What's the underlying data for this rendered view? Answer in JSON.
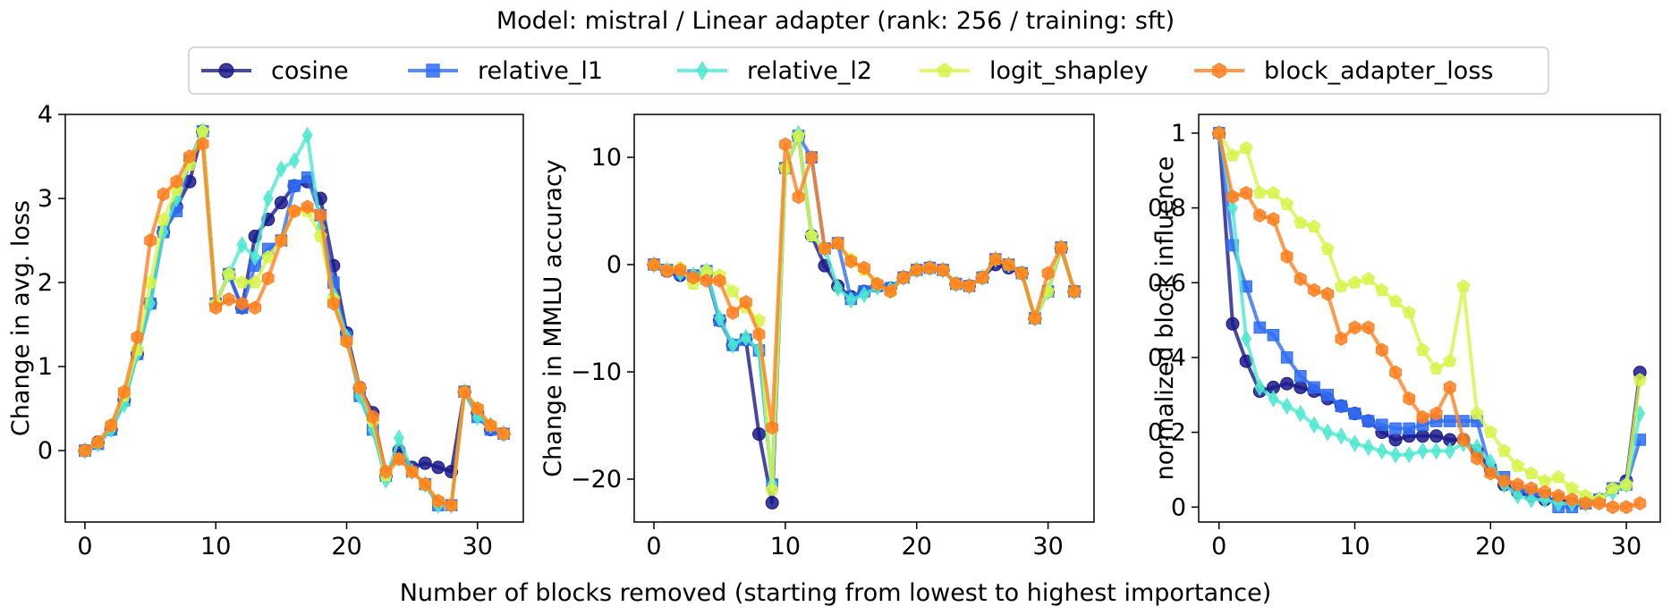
{
  "figure": {
    "title": "Model: mistral / Linear adapter (rank: 256 / training: sft)",
    "xlabel": "Number of blocks removed (starting from lowest to highest importance)"
  },
  "legend": {
    "placement": "top-center",
    "entries": [
      {
        "name": "cosine",
        "color": "#1a1a8c",
        "marker": "circle"
      },
      {
        "name": "relative_l1",
        "color": "#2f6df5",
        "marker": "square"
      },
      {
        "name": "relative_l2",
        "color": "#4de8d0",
        "marker": "diamond"
      },
      {
        "name": "logit_shapley",
        "color": "#d6f54a",
        "marker": "pentagon"
      },
      {
        "name": "block_adapter_loss",
        "color": "#ff7f1e",
        "marker": "hexagon"
      }
    ]
  },
  "chart_data": [
    {
      "type": "line",
      "ylabel": "Change in avg. loss",
      "xlim": [
        -1.5,
        33.5
      ],
      "ylim": [
        -0.85,
        4.0
      ],
      "xticks": [
        0,
        10,
        20,
        30
      ],
      "yticks": [
        0,
        1,
        2,
        3,
        4
      ],
      "grid": false,
      "x": [
        0,
        1,
        2,
        3,
        4,
        5,
        6,
        7,
        8,
        9,
        10,
        11,
        12,
        13,
        14,
        15,
        16,
        17,
        18,
        19,
        20,
        21,
        22,
        23,
        24,
        25,
        26,
        27,
        28,
        29,
        30,
        31,
        32
      ],
      "series": [
        {
          "name": "cosine",
          "values": [
            0,
            0.1,
            0.25,
            0.6,
            1.15,
            1.75,
            2.6,
            2.9,
            3.2,
            3.8,
            1.75,
            2.1,
            1.7,
            2.55,
            2.75,
            2.95,
            3.15,
            3.2,
            3.0,
            2.2,
            1.4,
            0.75,
            0.45,
            -0.3,
            0.0,
            -0.2,
            -0.15,
            -0.2,
            -0.25,
            0.7,
            0.45,
            0.25,
            0.2
          ]
        },
        {
          "name": "relative_l1",
          "values": [
            0,
            0.08,
            0.25,
            0.6,
            1.15,
            1.75,
            2.6,
            2.85,
            3.45,
            3.8,
            1.75,
            2.1,
            1.7,
            2.2,
            2.4,
            2.5,
            3.15,
            3.25,
            2.8,
            2.0,
            1.35,
            0.65,
            0.25,
            -0.3,
            -0.1,
            -0.25,
            -0.4,
            -0.65,
            -0.65,
            0.7,
            0.4,
            0.25,
            0.2
          ]
        },
        {
          "name": "relative_l2",
          "values": [
            0,
            0.08,
            0.25,
            0.55,
            1.15,
            1.75,
            2.6,
            3.0,
            3.45,
            3.8,
            1.75,
            2.1,
            2.45,
            2.3,
            3.0,
            3.35,
            3.45,
            3.75,
            2.65,
            1.85,
            1.35,
            0.65,
            0.25,
            -0.35,
            0.15,
            -0.25,
            -0.4,
            -0.65,
            -0.65,
            0.7,
            0.4,
            0.3,
            0.2
          ]
        },
        {
          "name": "logit_shapley",
          "values": [
            0,
            0.1,
            0.3,
            0.65,
            1.2,
            2.0,
            2.75,
            3.1,
            3.4,
            3.8,
            1.75,
            2.1,
            2.0,
            2.0,
            2.3,
            2.5,
            2.85,
            2.85,
            2.55,
            1.8,
            1.3,
            0.75,
            0.35,
            -0.3,
            -0.1,
            -0.25,
            -0.4,
            -0.6,
            -0.65,
            0.7,
            0.5,
            0.3,
            0.2
          ]
        },
        {
          "name": "block_adapter_loss",
          "values": [
            0,
            0.1,
            0.3,
            0.7,
            1.35,
            2.5,
            3.05,
            3.2,
            3.5,
            3.65,
            1.7,
            1.8,
            1.75,
            1.7,
            2.05,
            2.5,
            2.85,
            2.9,
            2.8,
            1.75,
            1.3,
            0.75,
            0.4,
            -0.25,
            -0.1,
            -0.25,
            -0.4,
            -0.6,
            -0.65,
            0.7,
            0.5,
            0.3,
            0.2
          ]
        }
      ]
    },
    {
      "type": "line",
      "ylabel": "Change in MMLU accuracy",
      "xlim": [
        -1.5,
        33.5
      ],
      "ylim": [
        -24.0,
        14.0
      ],
      "xticks": [
        0,
        10,
        20,
        30
      ],
      "yticks": [
        -20,
        -10,
        0,
        10
      ],
      "grid": false,
      "x": [
        0,
        1,
        2,
        3,
        4,
        5,
        6,
        7,
        8,
        9,
        10,
        11,
        12,
        13,
        14,
        15,
        16,
        17,
        18,
        19,
        20,
        21,
        22,
        23,
        24,
        25,
        26,
        27,
        28,
        29,
        30,
        31,
        32
      ],
      "series": [
        {
          "name": "cosine",
          "values": [
            0,
            -0.6,
            -1.0,
            -1.2,
            -0.8,
            -5.2,
            -7.5,
            -7.0,
            -15.8,
            -22.2,
            9.0,
            12.0,
            2.7,
            -0.1,
            -2.0,
            -3.0,
            -2.5,
            -2.0,
            -2.2,
            -1.2,
            -0.5,
            -0.3,
            -0.5,
            -1.8,
            -2.0,
            -1.2,
            0.0,
            -0.3,
            -0.8,
            -5.0,
            -2.5,
            1.5,
            -2.5
          ]
        },
        {
          "name": "relative_l1",
          "values": [
            0,
            -0.5,
            -0.8,
            -1.0,
            -0.6,
            -5.2,
            -7.5,
            -7.0,
            -8.0,
            -20.5,
            9.0,
            12.0,
            10.0,
            1.5,
            2.0,
            -3.2,
            -2.5,
            -2.0,
            -2.2,
            -1.2,
            -0.5,
            -0.3,
            -0.5,
            -1.8,
            -2.0,
            -1.2,
            0.5,
            0.0,
            -0.8,
            -5.0,
            -2.5,
            1.6,
            -2.5
          ]
        },
        {
          "name": "relative_l2",
          "values": [
            0,
            -0.5,
            -0.8,
            -1.0,
            -0.6,
            -5.0,
            -7.5,
            -6.8,
            -8.0,
            -20.5,
            9.0,
            12.2,
            2.8,
            1.5,
            -2.2,
            -3.3,
            -2.8,
            -2.1,
            -2.3,
            -1.2,
            -0.5,
            -0.3,
            -0.5,
            -1.8,
            -2.0,
            -1.2,
            0.5,
            0.0,
            -0.8,
            -5.0,
            -2.5,
            1.6,
            -2.5
          ]
        },
        {
          "name": "logit_shapley",
          "values": [
            0,
            -0.5,
            -0.3,
            -1.8,
            -0.6,
            -1.0,
            -2.5,
            -4.0,
            -5.2,
            -21.0,
            9.0,
            12.0,
            2.7,
            1.5,
            2.0,
            0.5,
            -0.5,
            -1.8,
            -2.5,
            -1.2,
            -0.5,
            -0.3,
            -0.5,
            -1.8,
            -2.0,
            -1.2,
            0.5,
            0.0,
            -0.8,
            -5.0,
            -2.5,
            1.6,
            -2.5
          ]
        },
        {
          "name": "block_adapter_loss",
          "values": [
            0,
            -0.6,
            -0.5,
            -1.2,
            -1.5,
            -1.5,
            -4.5,
            -3.5,
            -6.5,
            -15.2,
            11.2,
            6.3,
            10.0,
            1.5,
            2.0,
            0.3,
            -0.3,
            -1.8,
            -2.5,
            -1.2,
            -0.5,
            -0.3,
            -0.5,
            -1.8,
            -2.0,
            -1.2,
            0.5,
            0.0,
            -0.8,
            -5.0,
            -0.8,
            1.6,
            -2.5
          ]
        }
      ]
    },
    {
      "type": "line",
      "ylabel": "normalized block influence",
      "xlim": [
        -1.5,
        32.5
      ],
      "ylim": [
        -0.04,
        1.05
      ],
      "xticks": [
        0,
        10,
        20,
        30
      ],
      "yticks": [
        0.0,
        0.2,
        0.4,
        0.6,
        0.8,
        1.0
      ],
      "grid": false,
      "x": [
        0,
        1,
        2,
        3,
        4,
        5,
        6,
        7,
        8,
        9,
        10,
        11,
        12,
        13,
        14,
        15,
        16,
        17,
        18,
        19,
        20,
        21,
        22,
        23,
        24,
        25,
        26,
        27,
        28,
        29,
        30,
        31
      ],
      "series": [
        {
          "name": "cosine",
          "values": [
            1.0,
            0.49,
            0.39,
            0.31,
            0.32,
            0.33,
            0.32,
            0.31,
            0.29,
            0.27,
            0.25,
            0.23,
            0.2,
            0.18,
            0.19,
            0.19,
            0.19,
            0.18,
            0.18,
            0.15,
            0.1,
            0.06,
            0.04,
            0.03,
            0.02,
            0.02,
            0.01,
            0.01,
            0.02,
            0.05,
            0.07,
            0.36
          ]
        },
        {
          "name": "relative_l1",
          "values": [
            1.0,
            0.7,
            0.59,
            0.48,
            0.46,
            0.4,
            0.35,
            0.32,
            0.3,
            0.27,
            0.25,
            0.23,
            0.22,
            0.21,
            0.21,
            0.22,
            0.23,
            0.23,
            0.23,
            0.23,
            0.1,
            0.08,
            0.05,
            0.04,
            0.03,
            0.0,
            0.0,
            0.01,
            0.02,
            0.05,
            0.06,
            0.18
          ]
        },
        {
          "name": "relative_l2",
          "values": [
            1.0,
            0.8,
            0.45,
            0.32,
            0.29,
            0.27,
            0.25,
            0.22,
            0.2,
            0.19,
            0.17,
            0.16,
            0.15,
            0.14,
            0.14,
            0.15,
            0.15,
            0.15,
            0.17,
            0.16,
            0.12,
            0.06,
            0.03,
            0.02,
            0.02,
            0.01,
            0.01,
            0.01,
            0.02,
            0.04,
            0.06,
            0.25
          ]
        },
        {
          "name": "logit_shapley",
          "values": [
            1.0,
            0.94,
            0.96,
            0.84,
            0.84,
            0.81,
            0.76,
            0.75,
            0.69,
            0.59,
            0.6,
            0.61,
            0.58,
            0.55,
            0.52,
            0.42,
            0.37,
            0.39,
            0.59,
            0.25,
            0.2,
            0.15,
            0.11,
            0.09,
            0.07,
            0.08,
            0.05,
            0.03,
            0.02,
            0.05,
            0.06,
            0.34
          ]
        },
        {
          "name": "block_adapter_loss",
          "values": [
            1.0,
            0.83,
            0.84,
            0.78,
            0.77,
            0.67,
            0.61,
            0.58,
            0.57,
            0.45,
            0.48,
            0.48,
            0.42,
            0.36,
            0.29,
            0.24,
            0.25,
            0.32,
            0.18,
            0.13,
            0.09,
            0.07,
            0.06,
            0.05,
            0.04,
            0.03,
            0.02,
            0.01,
            0.01,
            0.0,
            0.0,
            0.01
          ]
        }
      ]
    }
  ]
}
